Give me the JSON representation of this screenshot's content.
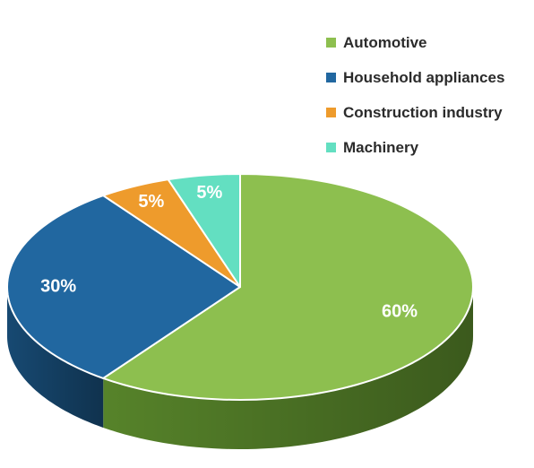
{
  "chart_data": {
    "type": "pie",
    "title": "",
    "categories": [
      "Automotive",
      "Household appliances",
      "Construction industry",
      "Machinery"
    ],
    "values": [
      60,
      30,
      5,
      5
    ],
    "data_labels": [
      "60%",
      "30%",
      "5%",
      "5%"
    ],
    "colors": [
      "#8dbf4f",
      "#2167a0",
      "#ee9b2c",
      "#63dfc1"
    ],
    "side_colors": [
      "#5b8a2c",
      "#184d78",
      "#b8741a",
      "#3fae95"
    ],
    "legend_position": "top-right",
    "style": "3d"
  }
}
